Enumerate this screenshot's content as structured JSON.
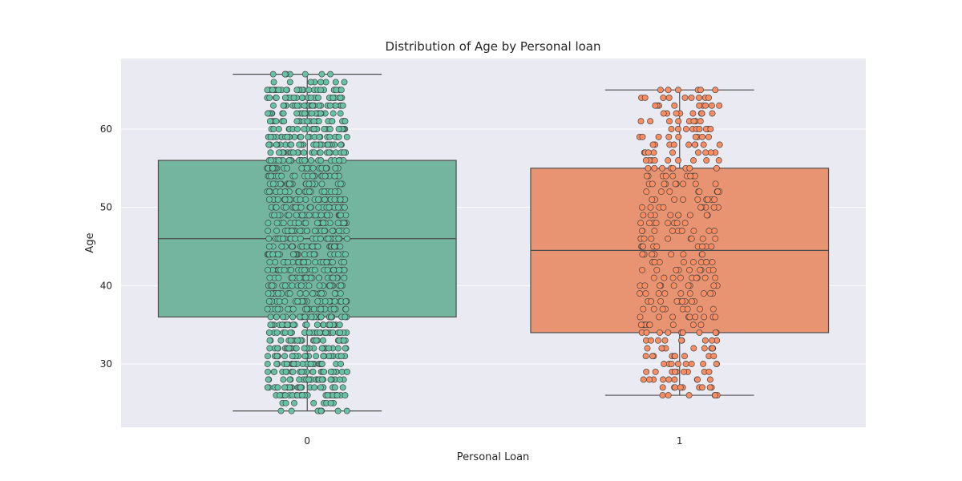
{
  "chart_data": {
    "type": "box",
    "title": "Distribution of Age by Personal loan",
    "xlabel": "Personal Loan",
    "ylabel": "Age",
    "categories": [
      "0",
      "1"
    ],
    "ylim": [
      22,
      69
    ],
    "yticks": [
      30,
      40,
      50,
      60
    ],
    "grid": true,
    "boxes": [
      {
        "category": "0",
        "color": "#66c2a5",
        "box_color": "#74b59f",
        "whisker_low": 24,
        "q1": 36,
        "median": 46,
        "q3": 56,
        "whisker_high": 67
      },
      {
        "category": "1",
        "color": "#fc8d62",
        "box_color": "#e89472",
        "whisker_low": 26,
        "q1": 34,
        "median": 44.5,
        "q3": 55,
        "whisker_high": 65
      }
    ],
    "strip": [
      {
        "category": "0",
        "age_min": 24,
        "age_max": 67,
        "density": "dense"
      },
      {
        "category": "1",
        "age_min": 26,
        "age_max": 65,
        "density": "sparse"
      }
    ]
  }
}
